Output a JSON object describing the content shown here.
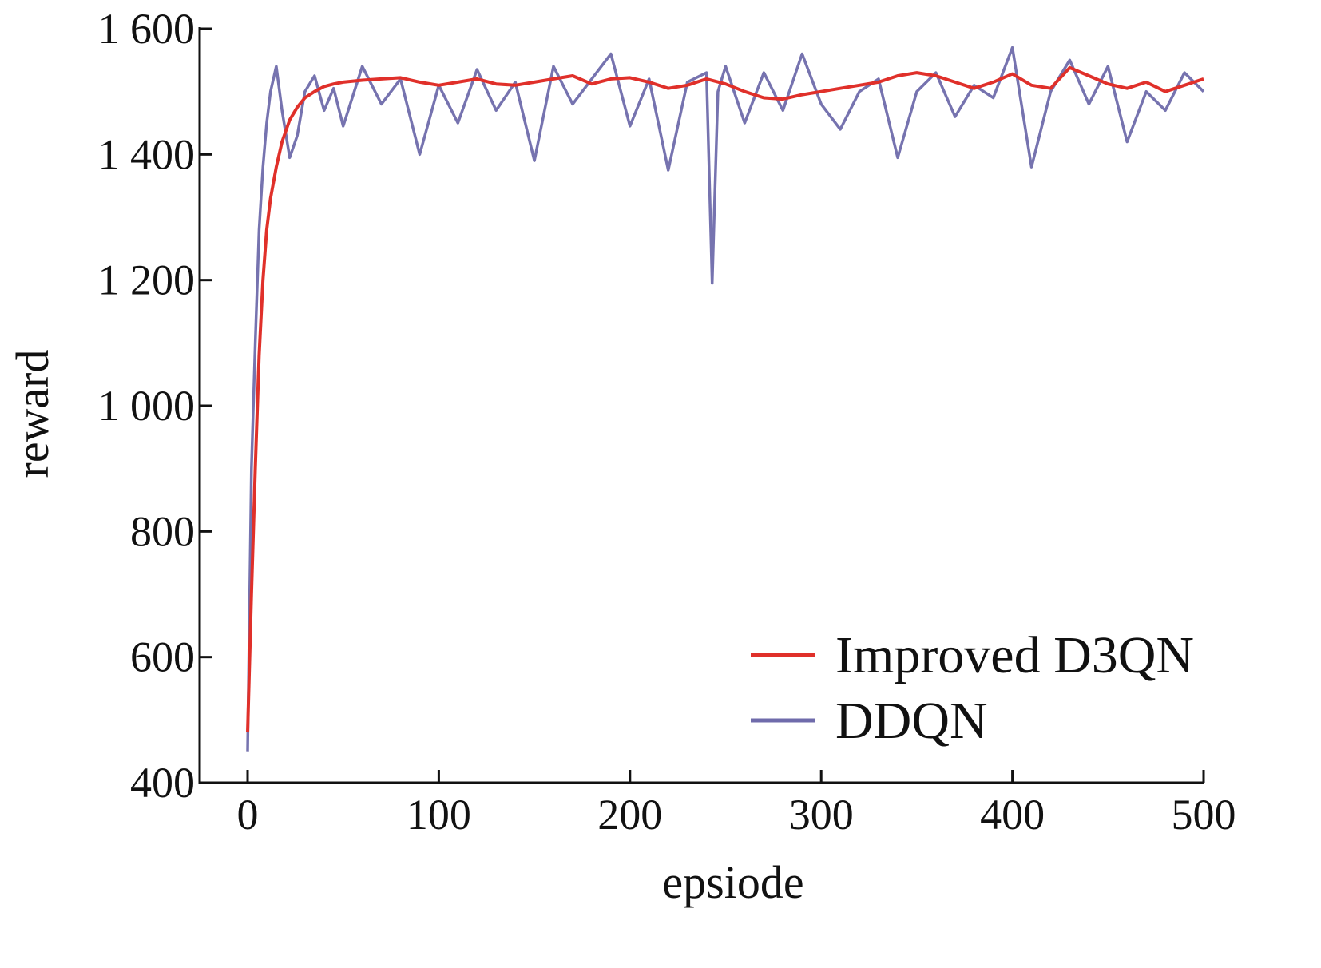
{
  "chart_data": {
    "type": "line",
    "xlabel": "epsiode",
    "ylabel": "reward",
    "xlim": [
      -25,
      500
    ],
    "ylim": [
      400,
      1600
    ],
    "xticks": [
      0,
      100,
      200,
      300,
      400,
      500
    ],
    "xtick_labels": [
      "0",
      "100",
      "200",
      "300",
      "400",
      "500"
    ],
    "yticks": [
      400,
      600,
      800,
      1000,
      1200,
      1400,
      1600
    ],
    "ytick_labels": [
      "400",
      "600",
      "800",
      "1 000",
      "1 200",
      "1 400",
      "1 600"
    ],
    "grid": false,
    "legend_position": "bottom-right",
    "series": [
      {
        "name": "Improved D3QN",
        "color": "#e0302a",
        "x": [
          0,
          2,
          4,
          6,
          8,
          10,
          12,
          15,
          18,
          22,
          26,
          30,
          35,
          40,
          45,
          50,
          60,
          70,
          80,
          90,
          100,
          110,
          120,
          130,
          140,
          150,
          160,
          170,
          180,
          190,
          200,
          210,
          220,
          230,
          240,
          250,
          260,
          270,
          280,
          290,
          300,
          310,
          320,
          330,
          340,
          350,
          360,
          370,
          380,
          390,
          400,
          410,
          420,
          430,
          440,
          450,
          460,
          470,
          480,
          490,
          500
        ],
        "values": [
          480,
          700,
          900,
          1080,
          1200,
          1280,
          1330,
          1380,
          1420,
          1455,
          1475,
          1490,
          1500,
          1508,
          1512,
          1515,
          1518,
          1520,
          1522,
          1515,
          1510,
          1515,
          1520,
          1512,
          1510,
          1515,
          1520,
          1525,
          1512,
          1520,
          1522,
          1515,
          1505,
          1510,
          1520,
          1512,
          1500,
          1490,
          1488,
          1495,
          1500,
          1505,
          1510,
          1515,
          1525,
          1530,
          1525,
          1515,
          1505,
          1515,
          1528,
          1510,
          1505,
          1538,
          1525,
          1512,
          1505,
          1515,
          1500,
          1510,
          1520
        ]
      },
      {
        "name": "DDQN",
        "color": "#6f6bab",
        "x": [
          0,
          2,
          4,
          6,
          8,
          10,
          12,
          15,
          18,
          22,
          26,
          30,
          35,
          40,
          45,
          50,
          60,
          70,
          80,
          90,
          100,
          110,
          120,
          130,
          140,
          150,
          160,
          170,
          180,
          190,
          200,
          210,
          220,
          230,
          240,
          243,
          246,
          250,
          260,
          270,
          280,
          290,
          300,
          310,
          320,
          330,
          340,
          350,
          360,
          370,
          380,
          390,
          400,
          410,
          420,
          430,
          440,
          450,
          460,
          470,
          480,
          490,
          500
        ],
        "values": [
          450,
          900,
          1100,
          1280,
          1380,
          1450,
          1500,
          1540,
          1470,
          1395,
          1430,
          1500,
          1525,
          1470,
          1505,
          1445,
          1540,
          1480,
          1520,
          1400,
          1510,
          1450,
          1535,
          1470,
          1515,
          1390,
          1540,
          1480,
          1520,
          1560,
          1445,
          1520,
          1375,
          1515,
          1530,
          1195,
          1500,
          1540,
          1450,
          1530,
          1470,
          1560,
          1480,
          1440,
          1500,
          1520,
          1395,
          1500,
          1530,
          1460,
          1510,
          1490,
          1570,
          1380,
          1500,
          1550,
          1480,
          1540,
          1420,
          1500,
          1470,
          1530,
          1500
        ]
      }
    ]
  }
}
